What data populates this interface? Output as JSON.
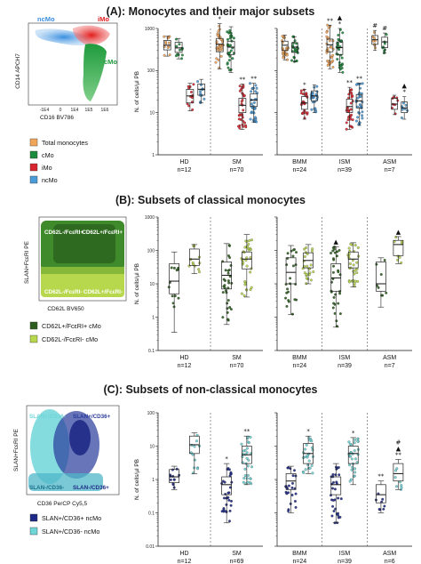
{
  "colors": {
    "total": "#f2a65a",
    "cmo": "#1e8a3c",
    "imo": "#d7262f",
    "ncmo": "#4a9bd8",
    "cd62l_pos": "#2e5e1f",
    "cd62l_neg": "#b7d84c",
    "slan_cd36_pos": "#1f2a86",
    "slan_cd36_neg": "#6fd6d8"
  },
  "panelA": {
    "title": "(A): Monocytes and their major subsets",
    "cytometry": {
      "xlabel": "CD16 BV786",
      "ylabel": "CD14 APCH7",
      "ticks": [
        "-1E4",
        "0",
        "1E4",
        "1E5",
        "1E6"
      ],
      "population_labels": [
        "ncMo",
        "iMo",
        "cMo"
      ]
    },
    "legend": [
      {
        "label": "Total monocytes",
        "color_key": "total"
      },
      {
        "label": "cMo",
        "color_key": "cmo"
      },
      {
        "label": "iMo",
        "color_key": "imo"
      },
      {
        "label": "ncMo",
        "color_key": "ncmo"
      }
    ]
  },
  "panelB": {
    "title": "(B): Subsets of classical monocytes",
    "cytometry": {
      "xlabel": "CD62L BV650",
      "ylabel": "SLAN+FcεRI PE",
      "quadrants": [
        "CD62L-/FcεRI+",
        "CD62L+/FcεRI+",
        "CD62L-/FcεRI-",
        "CD62L+/FcεRI-"
      ]
    },
    "legend": [
      {
        "label": "CD62L+/FcεRI+ cMo",
        "color_key": "cd62l_pos"
      },
      {
        "label": "CD62L-/FcεRI- cMo",
        "color_key": "cd62l_neg"
      }
    ]
  },
  "panelC": {
    "title": "(C): Subsets of non-classical monocytes",
    "cytometry": {
      "xlabel": "CD36 PerCP Cy5,5",
      "ylabel": "SLAN+FcεRI PE",
      "quadrants": [
        "SLAN+/CD36-",
        "SLAN+/CD36+",
        "SLAN-/CD36-",
        "SLAN-/CD36+"
      ]
    },
    "legend": [
      {
        "label": "SLAN+/CD36+ ncMo",
        "color_key": "slan_cd36_pos"
      },
      {
        "label": "SLAN+/CD36- ncMo",
        "color_key": "slan_cd36_neg"
      }
    ]
  },
  "chart_data": [
    {
      "id": "A-left",
      "type": "box",
      "ylabel": "N. of cells/µl PB",
      "yscale": "log",
      "ylim": [
        1,
        1000
      ],
      "yticks": [
        "1",
        "10",
        "100",
        "1000"
      ],
      "groups": [
        {
          "name": "HD",
          "n": "n=12",
          "boxes": [
            {
              "series": "Total monocytes",
              "color_key": "total",
              "q1": 310,
              "median": 400,
              "q3": 520,
              "wlo": 220,
              "whi": 650
            },
            {
              "series": "cMo",
              "color_key": "cmo",
              "q1": 270,
              "median": 345,
              "q3": 470,
              "wlo": 190,
              "whi": 580
            },
            {
              "series": "iMo",
              "color_key": "imo",
              "q1": 17,
              "median": 25,
              "q3": 36,
              "wlo": 11,
              "whi": 50
            },
            {
              "series": "ncMo",
              "color_key": "ncmo",
              "q1": 26,
              "median": 36,
              "q3": 48,
              "wlo": 17,
              "whi": 62
            }
          ]
        },
        {
          "name": "SM",
          "n": "n=70",
          "boxes": [
            {
              "series": "Total monocytes",
              "color_key": "total",
              "q1": 280,
              "median": 420,
              "q3": 580,
              "wlo": 110,
              "whi": 1300,
              "sig": "*"
            },
            {
              "series": "cMo",
              "color_key": "cmo",
              "q1": 240,
              "median": 360,
              "q3": 500,
              "wlo": 90,
              "whi": 1100
            },
            {
              "series": "iMo",
              "color_key": "imo",
              "q1": 10,
              "median": 15,
              "q3": 22,
              "wlo": 4,
              "whi": 48,
              "sig": "**"
            },
            {
              "series": "ncMo",
              "color_key": "ncmo",
              "q1": 14,
              "median": 20,
              "q3": 28,
              "wlo": 6,
              "whi": 50,
              "sig": "**"
            }
          ]
        }
      ]
    },
    {
      "id": "A-right",
      "type": "box",
      "ylabel": "N. of cells/µl PB",
      "yscale": "log",
      "ylim": [
        1,
        1000
      ],
      "groups": [
        {
          "name": "BMM",
          "n": "n=24",
          "boxes": [
            {
              "series": "Total monocytes",
              "color_key": "total",
              "q1": 300,
              "median": 400,
              "q3": 500,
              "wlo": 180,
              "whi": 700
            },
            {
              "series": "cMo",
              "color_key": "cmo",
              "q1": 270,
              "median": 360,
              "q3": 460,
              "wlo": 160,
              "whi": 640
            },
            {
              "series": "iMo",
              "color_key": "imo",
              "q1": 12,
              "median": 17,
              "q3": 24,
              "wlo": 7,
              "whi": 36,
              "sig": "*"
            },
            {
              "series": "ncMo",
              "color_key": "ncmo",
              "q1": 19,
              "median": 25,
              "q3": 33,
              "wlo": 10,
              "whi": 46
            }
          ]
        },
        {
          "name": "ISM",
          "n": "n=39",
          "boxes": [
            {
              "series": "Total monocytes",
              "color_key": "total",
              "q1": 280,
              "median": 410,
              "q3": 560,
              "wlo": 110,
              "whi": 1200,
              "sig": "**"
            },
            {
              "series": "cMo",
              "color_key": "cmo",
              "q1": 240,
              "median": 350,
              "q3": 480,
              "wlo": 90,
              "whi": 1000,
              "sig": "▲\n*"
            },
            {
              "series": "iMo",
              "color_key": "imo",
              "q1": 10,
              "median": 14,
              "q3": 21,
              "wlo": 4,
              "whi": 40,
              "sig": "**"
            },
            {
              "series": "ncMo",
              "color_key": "ncmo",
              "q1": 13,
              "median": 19,
              "q3": 27,
              "wlo": 5,
              "whi": 50,
              "sig": "**"
            }
          ]
        },
        {
          "name": "ASM",
          "n": "n=7",
          "boxes": [
            {
              "series": "Total monocytes",
              "color_key": "total",
              "q1": 420,
              "median": 540,
              "q3": 680,
              "wlo": 300,
              "whi": 900,
              "sig": "#"
            },
            {
              "series": "cMo",
              "color_key": "cmo",
              "q1": 350,
              "median": 480,
              "q3": 620,
              "wlo": 260,
              "whi": 780,
              "sig": "#"
            },
            {
              "series": "iMo",
              "color_key": "imo",
              "q1": 12,
              "median": 16,
              "q3": 22,
              "wlo": 9,
              "whi": 26
            },
            {
              "series": "ncMo",
              "color_key": "ncmo",
              "q1": 10,
              "median": 13,
              "q3": 18,
              "wlo": 7,
              "whi": 24,
              "sig": "▲\n*"
            }
          ]
        }
      ]
    },
    {
      "id": "B-left",
      "type": "box",
      "ylabel": "N. of cells/µl PB",
      "yscale": "log",
      "ylim": [
        0.1,
        1000
      ],
      "yticks": [
        "0.1",
        "1",
        "10",
        "100",
        "1000"
      ],
      "groups": [
        {
          "name": "HD",
          "n": "n=12",
          "boxes": [
            {
              "series": "CD62L+/FcεRI+ cMo",
              "color_key": "cd62l_pos",
              "q1": 5,
              "median": 12,
              "q3": 40,
              "wlo": 0.35,
              "whi": 90
            },
            {
              "series": "CD62L-/FcεRI- cMo",
              "color_key": "cd62l_neg",
              "q1": 35,
              "median": 55,
              "q3": 110,
              "wlo": 20,
              "whi": 150
            }
          ]
        },
        {
          "name": "SM",
          "n": "n=70",
          "boxes": [
            {
              "series": "CD62L+/FcεRI+ cMo",
              "color_key": "cd62l_pos",
              "q1": 7,
              "median": 18,
              "q3": 45,
              "wlo": 0.6,
              "whi": 160
            },
            {
              "series": "CD62L-/FcεRI- cMo",
              "color_key": "cd62l_neg",
              "q1": 28,
              "median": 55,
              "q3": 90,
              "wlo": 4,
              "whi": 300
            }
          ]
        }
      ]
    },
    {
      "id": "B-right",
      "type": "box",
      "ylabel": "N. of cells/µl PB",
      "yscale": "log",
      "ylim": [
        0.1,
        1000
      ],
      "groups": [
        {
          "name": "BMM",
          "n": "n=24",
          "boxes": [
            {
              "series": "CD62L+/FcεRI+ cMo",
              "color_key": "cd62l_pos",
              "q1": 10,
              "median": 22,
              "q3": 60,
              "wlo": 1.2,
              "whi": 140
            },
            {
              "series": "CD62L-/FcεRI- cMo",
              "color_key": "cd62l_neg",
              "q1": 30,
              "median": 50,
              "q3": 85,
              "wlo": 10,
              "whi": 150
            }
          ]
        },
        {
          "name": "ISM",
          "n": "n=39",
          "boxes": [
            {
              "series": "CD62L+/FcεRI+ cMo",
              "color_key": "cd62l_pos",
              "q1": 6,
              "median": 15,
              "q3": 40,
              "wlo": 0.5,
              "whi": 130,
              "sig": "▲"
            },
            {
              "series": "CD62L-/FcεRI- cMo",
              "color_key": "cd62l_neg",
              "q1": 30,
              "median": 55,
              "q3": 90,
              "wlo": 8,
              "whi": 170
            }
          ]
        },
        {
          "name": "ASM",
          "n": "n=7",
          "boxes": [
            {
              "series": "CD62L+/FcεRI+ cMo",
              "color_key": "cd62l_pos",
              "q1": 6,
              "median": 10,
              "q3": 45,
              "wlo": 2,
              "whi": 60
            },
            {
              "series": "CD62L-/FcεRI- cMo",
              "color_key": "cd62l_neg",
              "q1": 70,
              "median": 150,
              "q3": 200,
              "wlo": 40,
              "whi": 260,
              "sig": "▲"
            }
          ]
        }
      ]
    },
    {
      "id": "C-left",
      "type": "box",
      "ylabel": "N. of cells/µl PB",
      "yscale": "log",
      "ylim": [
        0.01,
        100
      ],
      "yticks": [
        "0.01",
        "0.1",
        "1",
        "10",
        "100"
      ],
      "groups": [
        {
          "name": "HD",
          "n": "n=12",
          "boxes": [
            {
              "series": "SLAN+/CD36+ ncMo",
              "color_key": "slan_cd36_pos",
              "q1": 0.8,
              "median": 1.2,
              "q3": 2.0,
              "wlo": 0.5,
              "whi": 2.5
            },
            {
              "series": "SLAN+/CD36- ncMo",
              "color_key": "slan_cd36_neg",
              "q1": 6,
              "median": 11,
              "q3": 20,
              "wlo": 1.5,
              "whi": 25
            }
          ]
        },
        {
          "name": "SM",
          "n": "n=69",
          "boxes": [
            {
              "series": "SLAN+/CD36+ ncMo",
              "color_key": "slan_cd36_pos",
              "q1": 0.35,
              "median": 0.7,
              "q3": 1.2,
              "wlo": 0.05,
              "whi": 3,
              "sig": "*"
            },
            {
              "series": "SLAN+/CD36- ncMo",
              "color_key": "slan_cd36_neg",
              "q1": 3,
              "median": 5.5,
              "q3": 10,
              "wlo": 0.7,
              "whi": 20,
              "sig": "**"
            }
          ]
        }
      ]
    },
    {
      "id": "C-right",
      "type": "box",
      "ylabel": "N. of cells/µl PB",
      "yscale": "log",
      "ylim": [
        0.01,
        100
      ],
      "groups": [
        {
          "name": "BMM",
          "n": "n=24",
          "boxes": [
            {
              "series": "SLAN+/CD36+ ncMo",
              "color_key": "slan_cd36_pos",
              "q1": 0.5,
              "median": 0.9,
              "q3": 1.5,
              "wlo": 0.1,
              "whi": 2.5
            },
            {
              "series": "SLAN+/CD36- ncMo",
              "color_key": "slan_cd36_neg",
              "q1": 3,
              "median": 6,
              "q3": 12,
              "wlo": 1.5,
              "whi": 20,
              "sig": "*"
            }
          ]
        },
        {
          "name": "ISM",
          "n": "n=39",
          "boxes": [
            {
              "series": "SLAN+/CD36+ ncMo",
              "color_key": "slan_cd36_pos",
              "q1": 0.35,
              "median": 0.7,
              "q3": 1.2,
              "wlo": 0.05,
              "whi": 3
            },
            {
              "series": "SLAN+/CD36- ncMo",
              "color_key": "slan_cd36_neg",
              "q1": 3,
              "median": 6,
              "q3": 10,
              "wlo": 0.7,
              "whi": 18,
              "sig": "*"
            }
          ]
        },
        {
          "name": "ASM",
          "n": "n=6",
          "boxes": [
            {
              "series": "SLAN+/CD36+ ncMo",
              "color_key": "slan_cd36_pos",
              "q1": 0.2,
              "median": 0.35,
              "q3": 0.7,
              "wlo": 0.1,
              "whi": 0.9,
              "sig": "**"
            },
            {
              "series": "SLAN+/CD36- ncMo",
              "color_key": "slan_cd36_neg",
              "q1": 0.9,
              "median": 1.5,
              "q3": 3,
              "wlo": 0.5,
              "whi": 4,
              "sig": "#\n▲\n**"
            }
          ]
        }
      ]
    }
  ]
}
